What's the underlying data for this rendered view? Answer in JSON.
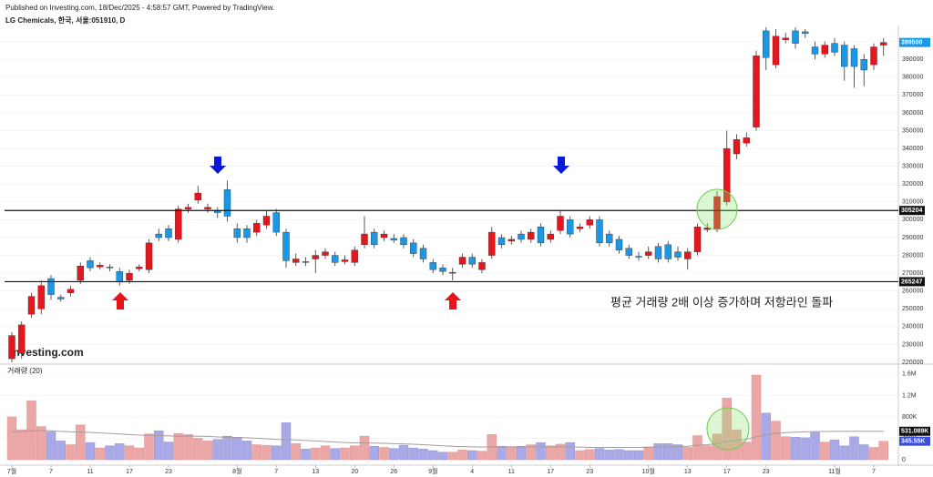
{
  "chart_data": {
    "type": "candlestick",
    "source": "Published on Investing.com, 18/Dec/2025 - 4:58:57 GMT, Powered by TradingView.",
    "title": "LG Chemicals, 한국, 서울:051910, D",
    "annotation": "평균 거래량 2배 이상 증가하며 저항라인 돌파",
    "logo": "Investing.com",
    "volume_label": "거래량 (20)",
    "colors": {
      "up": "#e5161d",
      "down": "#1a98e6",
      "volume_up": "#eba6a6",
      "volume_down": "#a9a9e8",
      "ma": "#a89a9a"
    },
    "categories": [
      "7월",
      null,
      null,
      null,
      "7",
      null,
      null,
      null,
      "11",
      null,
      null,
      null,
      "17",
      null,
      null,
      null,
      "23",
      null,
      null,
      null,
      null,
      null,
      null,
      "8월",
      null,
      null,
      null,
      "7",
      null,
      null,
      null,
      "13",
      null,
      null,
      null,
      "20",
      null,
      null,
      null,
      "26",
      null,
      null,
      null,
      "9월",
      null,
      null,
      null,
      "4",
      null,
      null,
      null,
      "11",
      null,
      null,
      null,
      "17",
      null,
      null,
      null,
      "23",
      null,
      null,
      null,
      null,
      null,
      "10월",
      null,
      null,
      null,
      "13",
      null,
      null,
      null,
      "17",
      null,
      null,
      null,
      "23",
      null,
      null,
      null,
      null,
      null,
      null,
      "11월",
      null,
      null,
      null,
      "7",
      null
    ],
    "open": [
      222000,
      225000,
      247000,
      250000,
      267000,
      256500,
      259000,
      266000,
      277000,
      273500,
      273500,
      271000,
      266000,
      272500,
      272000,
      292000,
      295000,
      289000,
      306000,
      311000,
      306000,
      305000,
      317000,
      295000,
      295000,
      293000,
      297000,
      304000,
      293000,
      276000,
      276500,
      278000,
      280000,
      280000,
      276500,
      276000,
      286000,
      293000,
      290000,
      289500,
      290000,
      287000,
      284000,
      276000,
      273000,
      270000,
      275000,
      279000,
      272000,
      280000,
      290000,
      288000,
      292000,
      289000,
      296000,
      289000,
      294000,
      300000,
      295000,
      297000,
      300000,
      292000,
      289000,
      284000,
      279500,
      280000,
      285000,
      286000,
      282000,
      278000,
      282000,
      294500,
      295000,
      310000,
      337000,
      343000,
      352000,
      406000,
      387000,
      401000,
      406000,
      405500,
      397000,
      393000,
      399000,
      398000,
      396000,
      390000,
      387000,
      398000
    ],
    "high": [
      237000,
      243000,
      259000,
      266000,
      269000,
      258000,
      263000,
      276000,
      279000,
      276000,
      275000,
      273000,
      272000,
      275000,
      289000,
      295000,
      297000,
      308000,
      309000,
      319000,
      309000,
      307000,
      322000,
      298000,
      297000,
      300000,
      305000,
      306000,
      295000,
      281000,
      279000,
      283000,
      284000,
      282000,
      280000,
      285000,
      302000,
      295000,
      294000,
      292000,
      292000,
      289000,
      286000,
      278000,
      275000,
      273000,
      281000,
      281000,
      278000,
      296000,
      292000,
      291000,
      294000,
      295000,
      298000,
      294000,
      305000,
      302000,
      298000,
      302000,
      302000,
      294000,
      291000,
      286000,
      282000,
      285000,
      287000,
      288000,
      285000,
      284000,
      298000,
      298000,
      316000,
      350000,
      348000,
      349000,
      395000,
      408000,
      407000,
      405000,
      408000,
      407000,
      400000,
      400000,
      402000,
      400000,
      398000,
      393000,
      399000,
      402000
    ],
    "low": [
      220000,
      222000,
      245000,
      247000,
      255000,
      254000,
      257000,
      264000,
      271000,
      272000,
      271000,
      263000,
      264000,
      271000,
      270000,
      288000,
      288000,
      287000,
      304000,
      309000,
      304000,
      301000,
      299000,
      287000,
      287000,
      291000,
      295000,
      291000,
      273000,
      274000,
      274000,
      270000,
      278000,
      274000,
      275000,
      274000,
      284000,
      284000,
      288000,
      287000,
      284000,
      279000,
      276000,
      270000,
      269000,
      266000,
      273000,
      273000,
      270000,
      278000,
      284000,
      286000,
      287000,
      287000,
      285000,
      287000,
      292000,
      290000,
      293000,
      295000,
      285000,
      285000,
      281000,
      278000,
      277000,
      278000,
      276000,
      276000,
      277000,
      272000,
      280000,
      293000,
      293000,
      308000,
      334000,
      341000,
      350000,
      384000,
      385000,
      399000,
      396000,
      402000,
      390000,
      391000,
      392000,
      378000,
      374000,
      375000,
      384000,
      392000
    ],
    "close": [
      235000,
      241000,
      257000,
      263000,
      258000,
      255500,
      261000,
      274000,
      273000,
      274500,
      273000,
      265000,
      270000,
      273500,
      287000,
      290000,
      290000,
      306000,
      307000,
      315000,
      307000,
      304000,
      302000,
      290000,
      290000,
      298000,
      302000,
      293000,
      277000,
      278000,
      276000,
      280000,
      282000,
      276000,
      277500,
      283000,
      292000,
      286000,
      292000,
      288500,
      286000,
      281000,
      278000,
      272000,
      271000,
      270500,
      279000,
      275000,
      276000,
      293000,
      286000,
      289000,
      289000,
      293000,
      287000,
      292000,
      302000,
      292000,
      296000,
      300000,
      287000,
      287000,
      283000,
      280000,
      279000,
      282000,
      278000,
      278000,
      279000,
      282000,
      296000,
      295500,
      313000,
      340000,
      345000,
      346000,
      392000,
      391000,
      403000,
      402000,
      399000,
      404500,
      393000,
      398000,
      394000,
      386000,
      386000,
      384000,
      397000,
      399500
    ],
    "ylim": [
      220000,
      408000
    ],
    "yticks": [
      220000,
      230000,
      240000,
      250000,
      260000,
      270000,
      280000,
      290000,
      300000,
      310000,
      320000,
      330000,
      340000,
      350000,
      360000,
      370000,
      380000,
      390000,
      400000
    ],
    "hlines": [
      305204,
      265247
    ],
    "last_price": 399500,
    "volume": {
      "values": [
        800000,
        560000,
        1100000,
        620000,
        520000,
        350000,
        280000,
        650000,
        320000,
        220000,
        260000,
        300000,
        260000,
        220000,
        480000,
        540000,
        330000,
        490000,
        470000,
        400000,
        350000,
        380000,
        440000,
        420000,
        350000,
        280000,
        270000,
        260000,
        690000,
        300000,
        200000,
        220000,
        260000,
        210000,
        220000,
        260000,
        440000,
        250000,
        230000,
        210000,
        270000,
        220000,
        200000,
        170000,
        140000,
        140000,
        180000,
        170000,
        160000,
        470000,
        250000,
        240000,
        250000,
        280000,
        320000,
        260000,
        290000,
        320000,
        170000,
        190000,
        210000,
        180000,
        190000,
        170000,
        170000,
        240000,
        300000,
        300000,
        280000,
        230000,
        450000,
        260000,
        480000,
        1150000,
        560000,
        330000,
        1580000,
        870000,
        720000,
        430000,
        420000,
        410000,
        510000,
        330000,
        370000,
        260000,
        430000,
        280000,
        230000,
        345550
      ],
      "ma": [
        520000,
        525000,
        540000,
        545000,
        540000,
        530000,
        520000,
        515000,
        510000,
        500000,
        490000,
        480000,
        470000,
        460000,
        455000,
        450000,
        445000,
        440000,
        440000,
        440000,
        435000,
        425000,
        420000,
        415000,
        410000,
        400000,
        390000,
        380000,
        375000,
        370000,
        360000,
        350000,
        340000,
        330000,
        320000,
        315000,
        315000,
        310000,
        305000,
        300000,
        295000,
        290000,
        280000,
        270000,
        260000,
        250000,
        245000,
        240000,
        235000,
        240000,
        240000,
        240000,
        240000,
        240000,
        240000,
        240000,
        240000,
        240000,
        235000,
        230000,
        230000,
        230000,
        230000,
        230000,
        230000,
        230000,
        235000,
        240000,
        245000,
        250000,
        270000,
        280000,
        300000,
        340000,
        360000,
        380000,
        430000,
        460000,
        490000,
        505000,
        515000,
        520000,
        525000,
        528000,
        530000,
        530000,
        531000,
        531000,
        531000,
        531089
      ],
      "ylim": [
        0,
        1700000
      ],
      "yticks": [
        0,
        {
          "value": 400000,
          "label": "400K"
        },
        {
          "value": 800000,
          "label": "800K"
        },
        {
          "value": 1200000,
          "label": "1.2M"
        },
        {
          "value": 1600000,
          "label": "1.6M"
        }
      ],
      "ma_tag": {
        "value": 531089,
        "label": "531.089K"
      },
      "last_tag": {
        "value": 345550,
        "label": "345.55K"
      }
    }
  }
}
